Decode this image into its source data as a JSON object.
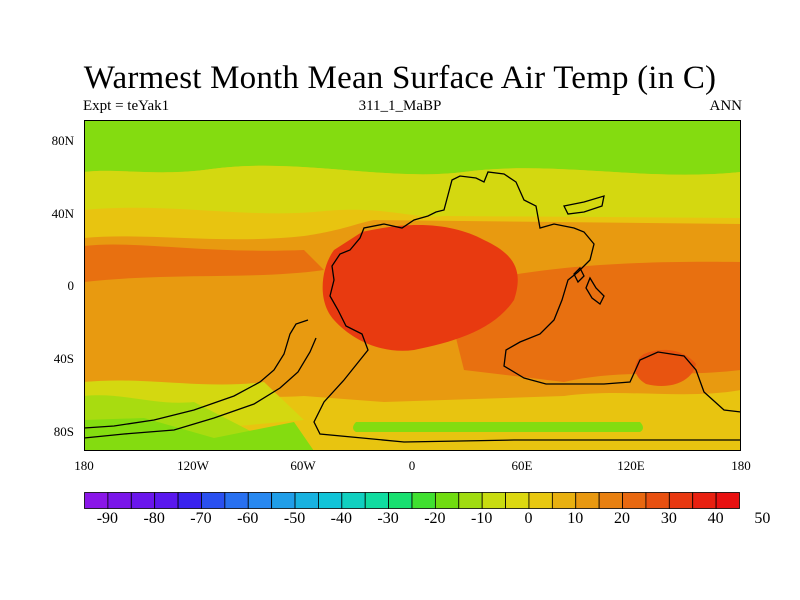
{
  "title": "Warmest Month Mean Surface Air Temp (in C)",
  "left_subtitle": "Expt = teYak1",
  "center_subtitle": "311_1_MaBP",
  "right_subtitle": "ANN",
  "lat_labels": [
    "80N",
    "40N",
    "0",
    "40S",
    "80S"
  ],
  "lon_labels": [
    "180",
    "120W",
    "60W",
    "0",
    "60E",
    "120E",
    "180"
  ],
  "colorbar": {
    "labels": [
      "-90",
      "-80",
      "-70",
      "-60",
      "-50",
      "-40",
      "-30",
      "-20",
      "-10",
      "0",
      "10",
      "20",
      "30",
      "40",
      "50"
    ],
    "colors": [
      "#8a16e8",
      "#7a16ea",
      "#6a16ec",
      "#5a18ee",
      "#3a22ee",
      "#2a50f0",
      "#2870f0",
      "#2888f0",
      "#209ee8",
      "#18b2e0",
      "#10c4d8",
      "#10d0c0",
      "#10dca0",
      "#18e070",
      "#40e030",
      "#70dc10",
      "#a0dc10",
      "#c8dc10",
      "#dcd810",
      "#e8c810",
      "#e8b010",
      "#e89810",
      "#e88010",
      "#e86810",
      "#e85010",
      "#e83810",
      "#e82010",
      "#e81010"
    ]
  },
  "map_colors": {
    "ice": "#84dc10",
    "cool": "#a8dc10",
    "mild": "#d4d810",
    "warm": "#e8c410",
    "warmer": "#e89a10",
    "hot": "#e87010",
    "hotter": "#e85410",
    "hottest": "#e83a10"
  }
}
